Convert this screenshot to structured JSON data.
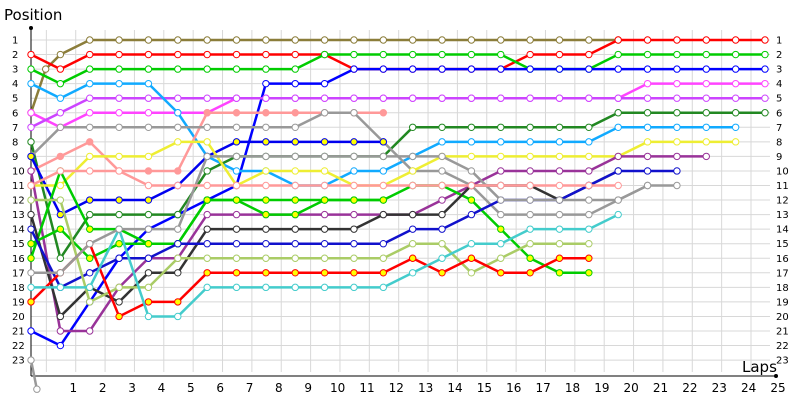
{
  "chart_data": {
    "type": "line",
    "ylabel": "Position",
    "xlabel": "Laps",
    "x_ticks": [
      "1",
      "2",
      "3",
      "4",
      "5",
      "6",
      "7",
      "8",
      "9",
      "10",
      "11",
      "12",
      "13",
      "14",
      "15",
      "16",
      "17",
      "18",
      "19",
      "20",
      "21",
      "22",
      "23",
      "24",
      "25"
    ],
    "y_ticks": [
      "1",
      "2",
      "3",
      "4",
      "5",
      "6",
      "7",
      "8",
      "9",
      "10",
      "11",
      "12",
      "13",
      "14",
      "15",
      "16",
      "17",
      "18",
      "19",
      "20",
      "21",
      "22",
      "23"
    ],
    "right_ticks": [
      "1",
      "2",
      "3",
      "4",
      "5",
      "6",
      "7",
      "8",
      "9",
      "10",
      "11",
      "12",
      "13",
      "14",
      "15",
      "16",
      "17",
      "18",
      "19",
      "20",
      "21",
      "22",
      "23"
    ],
    "xlim": [
      0,
      25.4
    ],
    "ylim": [
      1,
      23
    ],
    "y_inverted": true,
    "grid": true,
    "series": [
      {
        "color": "#8b7d3a",
        "fill": "#ffffff",
        "x": [
          0,
          0.5,
          1,
          2,
          3,
          4,
          5,
          6,
          7,
          8,
          9,
          10,
          11,
          12,
          13,
          14,
          15,
          16,
          17,
          18,
          19,
          20
        ],
        "y": [
          6,
          3,
          2,
          1,
          1,
          1,
          1,
          1,
          1,
          1,
          1,
          1,
          1,
          1,
          1,
          1,
          1,
          1,
          1,
          1,
          1,
          1
        ]
      },
      {
        "color": "#ff0000",
        "fill": "#ffffff",
        "x": [
          0,
          1,
          2,
          3,
          4,
          5,
          6,
          7,
          8,
          9,
          10,
          11,
          12,
          13,
          14,
          15,
          16,
          17,
          18,
          19,
          20,
          21,
          22,
          23,
          24,
          25
        ],
        "y": [
          2,
          3,
          2,
          2,
          2,
          2,
          2,
          2,
          2,
          2,
          2,
          3,
          3,
          3,
          3,
          3,
          3,
          2,
          2,
          2,
          1,
          1,
          1,
          1,
          1,
          1
        ]
      },
      {
        "color": "#00cc00",
        "fill": "#ffffff",
        "x": [
          0,
          1,
          2,
          3,
          4,
          5,
          6,
          7,
          8,
          9,
          10,
          11,
          12,
          13,
          14,
          15,
          16,
          17,
          18,
          19,
          20,
          21,
          22,
          23,
          24,
          25
        ],
        "y": [
          3,
          4,
          3,
          3,
          3,
          3,
          3,
          3,
          3,
          3,
          2,
          2,
          2,
          2,
          2,
          2,
          2,
          3,
          3,
          3,
          2,
          2,
          2,
          2,
          2,
          2
        ]
      },
      {
        "color": "#0000ff",
        "fill": "#ffffff",
        "x": [
          0,
          1,
          2,
          3,
          4,
          5,
          6,
          7,
          8,
          9,
          10,
          11,
          12,
          13,
          14,
          15,
          16,
          17,
          18,
          19,
          20,
          21,
          22,
          23,
          24,
          25
        ],
        "y": [
          21,
          22,
          19,
          16,
          14,
          13,
          12,
          11,
          4,
          4,
          4,
          3,
          3,
          3,
          3,
          3,
          3,
          3,
          3,
          3,
          3,
          3,
          3,
          3,
          3,
          3
        ]
      },
      {
        "color": "#ff44ff",
        "fill": "#ffffff",
        "x": [
          0,
          1,
          2,
          3,
          4,
          5,
          6,
          7,
          8,
          9,
          10,
          11,
          12,
          13,
          14,
          15,
          16,
          17,
          18,
          19,
          20,
          21,
          22,
          23,
          24,
          25
        ],
        "y": [
          6,
          7,
          6,
          6,
          6,
          6,
          6,
          5,
          5,
          5,
          5,
          5,
          5,
          5,
          5,
          5,
          5,
          5,
          5,
          5,
          5,
          4,
          4,
          4,
          4,
          4
        ]
      },
      {
        "color": "#cc44ff",
        "fill": "#ffffff",
        "x": [
          0,
          1,
          2,
          3,
          4,
          5,
          6,
          7,
          8,
          9,
          10,
          11,
          12,
          13,
          14,
          15,
          16,
          17,
          18,
          19,
          20,
          21,
          22,
          23,
          24,
          25
        ],
        "y": [
          7,
          6,
          5,
          5,
          5,
          5,
          5,
          5,
          5,
          5,
          5,
          5,
          5,
          5,
          5,
          5,
          5,
          5,
          5,
          5,
          5,
          5,
          5,
          5,
          5,
          5
        ]
      },
      {
        "color": "#11aaff",
        "fill": "#ffffff",
        "x": [
          0,
          1,
          2,
          3,
          4,
          5,
          6,
          7,
          8,
          9,
          10,
          11,
          12,
          13,
          14,
          15,
          16,
          17,
          18,
          19,
          20,
          21,
          22,
          23,
          24
        ],
        "y": [
          4,
          5,
          4,
          4,
          4,
          6,
          9,
          10,
          10,
          11,
          11,
          10,
          10,
          9,
          8,
          8,
          8,
          8,
          8,
          8,
          7,
          7,
          7,
          7,
          7
        ]
      },
      {
        "color": "#228822",
        "fill": "#ffffff",
        "x": [
          0,
          1,
          2,
          3,
          4,
          5,
          6,
          7,
          8,
          9,
          10,
          11,
          12,
          13,
          14,
          15,
          16,
          17,
          18,
          19,
          20,
          21,
          22,
          23,
          24,
          25
        ],
        "y": [
          8,
          16,
          13,
          13,
          13,
          13,
          10,
          9,
          9,
          9,
          9,
          9,
          9,
          7,
          7,
          7,
          7,
          7,
          7,
          7,
          6,
          6,
          6,
          6,
          6,
          6
        ]
      },
      {
        "color": "#ff9999",
        "fill": "#ff9999",
        "x": [
          0,
          1,
          2,
          3,
          4,
          5,
          6,
          7,
          8,
          9,
          10,
          11,
          12
        ],
        "y": [
          10,
          9,
          8,
          10,
          10,
          10,
          6,
          6,
          6,
          6,
          6,
          6,
          6
        ]
      },
      {
        "color": "#999999",
        "fill": "#ffffff",
        "x": [
          0,
          1,
          2,
          3,
          4,
          5,
          6,
          7,
          8,
          9,
          10,
          11,
          12,
          13,
          14,
          15,
          16,
          17,
          18,
          19,
          20,
          21
        ],
        "y": [
          9,
          7,
          7,
          7,
          7,
          7,
          7,
          7,
          7,
          7,
          6,
          6,
          8,
          10,
          10,
          11,
          13,
          13,
          13,
          13,
          12,
          11
        ]
      },
      {
        "color": "#0000ee",
        "fill": "#ffff00",
        "x": [
          0,
          1,
          2,
          3,
          4,
          5,
          6,
          7,
          8,
          9,
          10,
          11,
          12
        ],
        "y": [
          9,
          13,
          12,
          12,
          12,
          11,
          9,
          8,
          8,
          8,
          8,
          8,
          8
        ]
      },
      {
        "color": "#eeee33",
        "fill": "#ffffff",
        "x": [
          0,
          1,
          2,
          3,
          4,
          5,
          6,
          7,
          8,
          9,
          10,
          11,
          12,
          13,
          14,
          15,
          16,
          17,
          18,
          19,
          20,
          21,
          22,
          23,
          24
        ],
        "y": [
          11,
          11,
          9,
          9,
          9,
          8,
          8,
          11,
          10,
          10,
          10,
          11,
          11,
          10,
          9,
          9,
          9,
          9,
          9,
          9,
          9,
          8,
          8,
          8,
          8
        ]
      },
      {
        "color": "#993399",
        "fill": "#ffffff",
        "x": [
          0,
          1,
          2,
          3,
          4,
          5,
          6,
          7,
          8,
          9,
          10,
          11,
          12,
          13,
          14,
          15,
          16,
          17,
          18,
          19,
          20,
          21,
          22,
          23
        ],
        "y": [
          10,
          21,
          21,
          18,
          16,
          16,
          13,
          13,
          13,
          13,
          13,
          13,
          13,
          13,
          12,
          11,
          10,
          10,
          10,
          10,
          9,
          9,
          9,
          9
        ]
      },
      {
        "color": "#00cc00",
        "fill": "#ffff00",
        "x": [
          0,
          1,
          2,
          3,
          4,
          5,
          6,
          7,
          8,
          9,
          10,
          11,
          12,
          13,
          14,
          15,
          16,
          17,
          18,
          19
        ],
        "y": [
          16,
          10,
          14,
          14,
          15,
          15,
          12,
          12,
          13,
          13,
          12,
          12,
          12,
          11,
          11,
          12,
          14,
          16,
          17,
          17
        ]
      },
      {
        "color": "#333333",
        "fill": "#ffffff",
        "x": [
          0,
          1,
          2,
          3,
          4,
          5,
          6,
          7,
          8,
          9,
          10,
          11,
          12,
          13,
          14,
          15,
          16,
          17,
          18,
          19,
          20
        ],
        "y": [
          13,
          20,
          18,
          19,
          17,
          17,
          14,
          14,
          14,
          14,
          14,
          14,
          13,
          13,
          13,
          11,
          11,
          11,
          12,
          11,
          10
        ]
      },
      {
        "color": "#00cc00",
        "fill": "#ffff00",
        "x": [
          0,
          1,
          2,
          3,
          4,
          5,
          6,
          7,
          8,
          9,
          10,
          11,
          12
        ],
        "y": [
          15,
          14,
          16,
          15,
          15,
          15,
          12,
          12,
          12,
          12,
          12,
          12,
          12
        ]
      },
      {
        "color": "#1111cc",
        "fill": "#ffffff",
        "x": [
          0,
          1,
          2,
          3,
          4,
          5,
          6,
          7,
          8,
          9,
          10,
          11,
          12,
          13,
          14,
          15,
          16,
          17,
          18,
          19,
          20,
          21,
          22
        ],
        "y": [
          14,
          18,
          17,
          16,
          16,
          15,
          15,
          15,
          15,
          15,
          15,
          15,
          15,
          14,
          14,
          13,
          12,
          12,
          12,
          11,
          10,
          10,
          10
        ]
      },
      {
        "color": "#aacc66",
        "fill": "#ffffff",
        "x": [
          0,
          1,
          2,
          3,
          4,
          5,
          6,
          7,
          8,
          9,
          10,
          11,
          12,
          13,
          14,
          15,
          16,
          17,
          18,
          19
        ],
        "y": [
          12,
          12,
          19,
          18,
          18,
          16,
          16,
          16,
          16,
          16,
          16,
          16,
          16,
          15,
          15,
          17,
          16,
          15,
          15,
          15
        ]
      },
      {
        "color": "#ff0000",
        "fill": "#ffff00",
        "x": [
          0,
          1,
          2,
          3,
          4,
          5,
          6,
          7,
          8,
          9,
          10,
          11,
          12,
          13,
          14,
          15,
          16,
          17,
          18,
          19
        ],
        "y": [
          19,
          17,
          15,
          20,
          19,
          19,
          17,
          17,
          17,
          17,
          17,
          17,
          17,
          16,
          17,
          16,
          17,
          17,
          16,
          16
        ]
      },
      {
        "color": "#44cccc",
        "fill": "#ffffff",
        "x": [
          0,
          1,
          2,
          3,
          4,
          5,
          6,
          7,
          8,
          9,
          10,
          11,
          12,
          13,
          14,
          15,
          16,
          17,
          18,
          19,
          20
        ],
        "y": [
          18,
          18,
          18,
          14,
          20,
          20,
          18,
          18,
          18,
          18,
          18,
          18,
          18,
          17,
          16,
          15,
          15,
          14,
          14,
          14,
          13
        ]
      },
      {
        "color": "#999999",
        "fill": "#ffffff",
        "x": [
          0,
          1,
          2,
          3,
          4,
          5,
          6,
          7,
          8,
          9,
          10,
          11,
          12,
          13,
          14,
          15,
          16,
          17,
          18,
          19,
          20,
          21,
          22
        ],
        "y": [
          17,
          17,
          15,
          14,
          14,
          14,
          9,
          9,
          9,
          9,
          9,
          9,
          9,
          9,
          9,
          10,
          12,
          12,
          12,
          12,
          12,
          11,
          11
        ]
      },
      {
        "color": "#ff9999",
        "fill": "#ffffff",
        "x": [
          0,
          1,
          2,
          3,
          4,
          5,
          6,
          7,
          8,
          9,
          10,
          11,
          12,
          13,
          14,
          15,
          16,
          17,
          18,
          19,
          20
        ],
        "y": [
          11,
          10,
          10,
          10,
          11,
          11,
          11,
          11,
          11,
          11,
          11,
          11,
          11,
          11,
          11,
          11,
          11,
          11,
          11,
          11,
          11
        ]
      },
      {
        "color": "#999999",
        "fill": "#ffffff",
        "x": [
          0,
          0.2
        ],
        "y": [
          23,
          25
        ]
      }
    ]
  }
}
